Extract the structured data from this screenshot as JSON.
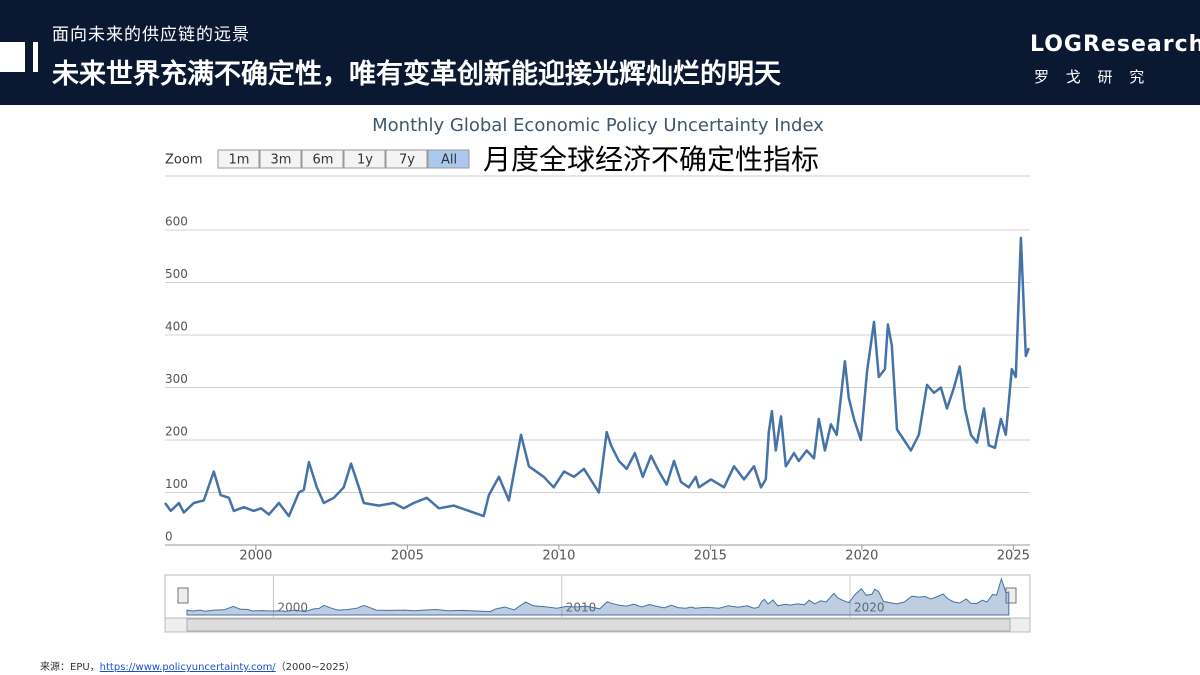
{
  "header": {
    "subtitle": "面向未来的供应链的远景",
    "title": "未来世界充满不确定性，唯有变革创新能迎接光辉灿烂的明天"
  },
  "logo": {
    "brand": "LOGResearch",
    "name": "罗 戈 研 究"
  },
  "source": {
    "prefix": "来源：EPU，",
    "link": "https://www.policyuncertainty.com/",
    "suffix": "（2000~2025）"
  },
  "chart_data": {
    "type": "line",
    "title": "Monthly Global Economic Policy Uncertainty Index",
    "annotation": "月度全球经济不确定性指标",
    "zoom_label": "Zoom",
    "zoom_buttons": [
      "1m",
      "3m",
      "6m",
      "1y",
      "7y",
      "All"
    ],
    "zoom_selected": "All",
    "color": "#4572a7",
    "grid": true,
    "x": [
      1997.0,
      1997.19,
      1997.46,
      1997.62,
      1997.95,
      1998.28,
      1998.61,
      1998.84,
      1999.11,
      1999.27,
      1999.6,
      1999.93,
      2000.17,
      2000.43,
      2000.76,
      2001.09,
      2001.42,
      2001.58,
      2001.75,
      2002.01,
      2002.24,
      2002.57,
      2002.9,
      2003.14,
      2003.4,
      2003.56,
      2004.06,
      2004.55,
      2004.88,
      2005.21,
      2005.64,
      2006.04,
      2006.53,
      2007.03,
      2007.52,
      2007.69,
      2008.02,
      2008.35,
      2008.75,
      2009.01,
      2009.5,
      2009.83,
      2010.17,
      2010.5,
      2010.83,
      2011.32,
      2011.58,
      2011.72,
      2011.98,
      2012.24,
      2012.51,
      2012.77,
      2013.04,
      2013.3,
      2013.56,
      2013.8,
      2014.03,
      2014.29,
      2014.52,
      2014.62,
      2015.02,
      2015.45,
      2015.78,
      2016.11,
      2016.44,
      2016.67,
      2016.83,
      2016.93,
      2017.03,
      2017.16,
      2017.33,
      2017.49,
      2017.76,
      2017.92,
      2018.18,
      2018.42,
      2018.58,
      2018.78,
      2018.98,
      2019.17,
      2019.44,
      2019.57,
      2019.74,
      2019.97,
      2020.17,
      2020.4,
      2020.56,
      2020.76,
      2020.86,
      2020.99,
      2021.16,
      2021.39,
      2021.62,
      2021.88,
      2022.15,
      2022.38,
      2022.61,
      2022.81,
      2023.04,
      2023.23,
      2023.4,
      2023.6,
      2023.8,
      2024.03,
      2024.19,
      2024.39,
      2024.59,
      2024.75,
      2024.95,
      2025.08,
      2025.25,
      2025.41,
      2025.51
    ],
    "values": [
      80,
      65,
      80,
      62,
      80,
      85,
      140,
      95,
      90,
      65,
      72,
      65,
      70,
      58,
      80,
      55,
      100,
      105,
      158,
      110,
      80,
      90,
      110,
      155,
      110,
      80,
      75,
      80,
      70,
      80,
      90,
      70,
      75,
      65,
      55,
      95,
      130,
      85,
      210,
      150,
      130,
      110,
      140,
      130,
      145,
      100,
      215,
      190,
      160,
      145,
      175,
      130,
      170,
      140,
      115,
      160,
      120,
      110,
      130,
      110,
      125,
      110,
      150,
      125,
      150,
      110,
      125,
      215,
      255,
      180,
      245,
      150,
      175,
      160,
      180,
      165,
      240,
      180,
      230,
      210,
      350,
      280,
      240,
      200,
      330,
      425,
      320,
      335,
      420,
      380,
      220,
      200,
      180,
      210,
      305,
      290,
      300,
      260,
      300,
      340,
      260,
      210,
      195,
      260,
      190,
      185,
      240,
      210,
      335,
      320,
      585,
      360,
      375
    ],
    "xlim": [
      1997,
      2025.55
    ],
    "ylim": [
      0,
      600
    ],
    "xticks": [
      2000,
      2005,
      2010,
      2015,
      2020,
      2025
    ],
    "yticks": [
      0,
      100,
      200,
      300,
      400,
      500,
      600
    ],
    "navigator_xticks": [
      2000,
      2010,
      2020
    ]
  }
}
